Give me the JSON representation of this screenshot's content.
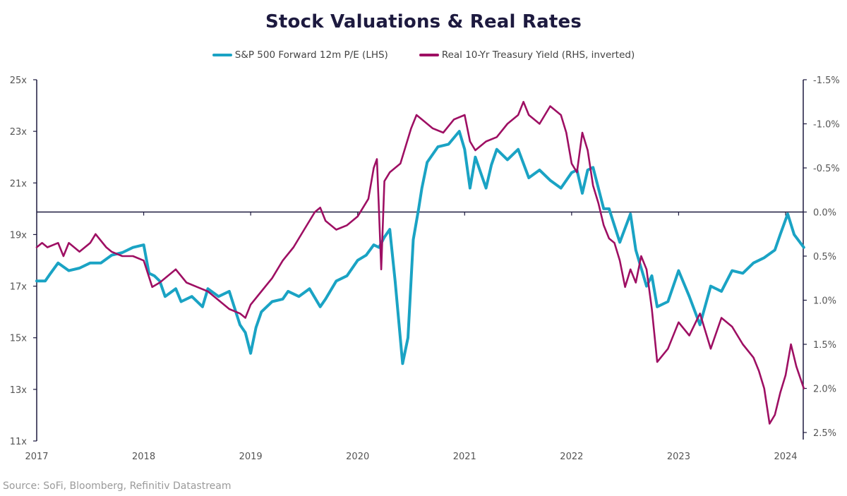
{
  "title": "Stock Valuations & Real Rates",
  "source": "Source: SoFi, Bloomberg, Refinitiv Datastream",
  "legend": [
    {
      "label": "S&P 500 Forward 12m P/E (LHS)",
      "color": "#1aa3c4"
    },
    {
      "label": "Real 10-Yr Treasury Yield (RHS, inverted)",
      "color": "#9e0f63"
    }
  ],
  "chart_data": {
    "type": "line",
    "title": "Stock Valuations & Real Rates",
    "xlabel": "",
    "ylabel_left": "",
    "ylabel_right": "",
    "x_ticks": [
      "2017",
      "2018",
      "2019",
      "2020",
      "2021",
      "2022",
      "2023",
      "2024"
    ],
    "xlim": [
      2017.0,
      2024.17
    ],
    "y_left": {
      "ticks": [
        "25x",
        "23x",
        "21x",
        "19x",
        "17x",
        "15x",
        "13x",
        "11x"
      ],
      "tick_values": [
        25,
        23,
        21,
        19,
        17,
        15,
        13,
        11
      ],
      "range": [
        11,
        25
      ]
    },
    "y_right": {
      "ticks": [
        "-1.5%",
        "-1.0%",
        "-0.5%",
        "0.0%",
        "0.5%",
        "1.0%",
        "1.5%",
        "2.0%",
        "2.5%"
      ],
      "tick_values": [
        -1.5,
        -1.0,
        -0.5,
        0.0,
        0.5,
        1.0,
        1.5,
        2.0,
        2.5
      ],
      "range": [
        -1.5,
        2.5
      ],
      "inverted": true
    },
    "reference_line": {
      "axis": "right",
      "value": 0.0
    },
    "grid": false,
    "legend_position": "top",
    "series": [
      {
        "name": "S&P 500 Forward 12m P/E (LHS)",
        "axis": "left",
        "color": "#1aa3c4",
        "x": [
          2017.0,
          2017.08,
          2017.13,
          2017.2,
          2017.3,
          2017.4,
          2017.5,
          2017.6,
          2017.7,
          2017.8,
          2017.9,
          2018.0,
          2018.05,
          2018.1,
          2018.15,
          2018.2,
          2018.3,
          2018.35,
          2018.45,
          2018.55,
          2018.6,
          2018.7,
          2018.8,
          2018.9,
          2018.95,
          2019.0,
          2019.05,
          2019.1,
          2019.2,
          2019.3,
          2019.35,
          2019.45,
          2019.55,
          2019.65,
          2019.7,
          2019.8,
          2019.9,
          2020.0,
          2020.08,
          2020.15,
          2020.2,
          2020.25,
          2020.3,
          2020.35,
          2020.42,
          2020.47,
          2020.52,
          2020.57,
          2020.6,
          2020.65,
          2020.75,
          2020.85,
          2020.95,
          2021.0,
          2021.05,
          2021.1,
          2021.2,
          2021.25,
          2021.3,
          2021.4,
          2021.5,
          2021.6,
          2021.7,
          2021.8,
          2021.9,
          2022.0,
          2022.05,
          2022.1,
          2022.15,
          2022.2,
          2022.3,
          2022.35,
          2022.45,
          2022.55,
          2022.6,
          2022.7,
          2022.75,
          2022.8,
          2022.9,
          2023.0,
          2023.1,
          2023.2,
          2023.3,
          2023.4,
          2023.5,
          2023.6,
          2023.7,
          2023.8,
          2023.9,
          2023.95,
          2024.02,
          2024.08,
          2024.17
        ],
        "values": [
          17.2,
          17.2,
          17.5,
          17.9,
          17.6,
          17.7,
          17.9,
          17.9,
          18.2,
          18.3,
          18.5,
          18.6,
          17.5,
          17.4,
          17.2,
          16.6,
          16.9,
          16.4,
          16.6,
          16.2,
          16.9,
          16.6,
          16.8,
          15.5,
          15.2,
          14.4,
          15.4,
          16.0,
          16.4,
          16.5,
          16.8,
          16.6,
          16.9,
          16.2,
          16.5,
          17.2,
          17.4,
          18.0,
          18.2,
          18.6,
          18.5,
          18.9,
          19.2,
          17.2,
          14.0,
          15.0,
          18.8,
          20.0,
          20.8,
          21.8,
          22.4,
          22.5,
          23.0,
          22.3,
          20.8,
          22.0,
          20.8,
          21.7,
          22.3,
          21.9,
          22.3,
          21.2,
          21.5,
          21.1,
          20.8,
          21.4,
          21.5,
          20.6,
          21.5,
          21.6,
          20.0,
          20.0,
          18.7,
          19.8,
          18.4,
          17.0,
          17.4,
          16.2,
          16.4,
          17.6,
          16.6,
          15.5,
          17.0,
          16.8,
          17.6,
          17.5,
          17.9,
          18.1,
          18.4,
          19.0,
          19.8,
          19.0,
          18.5
        ]
      },
      {
        "name": "Real 10-Yr Treasury Yield (RHS, inverted)",
        "axis": "right",
        "color": "#9e0f63",
        "x": [
          2017.0,
          2017.05,
          2017.1,
          2017.2,
          2017.25,
          2017.3,
          2017.4,
          2017.5,
          2017.55,
          2017.65,
          2017.7,
          2017.8,
          2017.9,
          2018.0,
          2018.08,
          2018.15,
          2018.2,
          2018.3,
          2018.4,
          2018.5,
          2018.6,
          2018.7,
          2018.8,
          2018.9,
          2018.95,
          2019.0,
          2019.1,
          2019.2,
          2019.3,
          2019.4,
          2019.5,
          2019.6,
          2019.65,
          2019.7,
          2019.8,
          2019.9,
          2020.0,
          2020.05,
          2020.1,
          2020.15,
          2020.18,
          2020.2,
          2020.22,
          2020.25,
          2020.3,
          2020.4,
          2020.5,
          2020.55,
          2020.6,
          2020.7,
          2020.8,
          2020.9,
          2021.0,
          2021.05,
          2021.1,
          2021.2,
          2021.3,
          2021.4,
          2021.5,
          2021.55,
          2021.6,
          2021.7,
          2021.8,
          2021.9,
          2021.95,
          2022.0,
          2022.05,
          2022.1,
          2022.15,
          2022.2,
          2022.25,
          2022.3,
          2022.35,
          2022.4,
          2022.45,
          2022.5,
          2022.55,
          2022.6,
          2022.65,
          2022.7,
          2022.75,
          2022.8,
          2022.9,
          2023.0,
          2023.1,
          2023.2,
          2023.3,
          2023.4,
          2023.5,
          2023.6,
          2023.7,
          2023.75,
          2023.8,
          2023.85,
          2023.9,
          2023.95,
          2024.0,
          2024.05,
          2024.1,
          2024.17
        ],
        "values": [
          0.4,
          0.35,
          0.4,
          0.35,
          0.5,
          0.35,
          0.45,
          0.35,
          0.25,
          0.4,
          0.45,
          0.5,
          0.5,
          0.55,
          0.85,
          0.8,
          0.75,
          0.65,
          0.8,
          0.85,
          0.9,
          1.0,
          1.1,
          1.15,
          1.2,
          1.05,
          0.9,
          0.75,
          0.55,
          0.4,
          0.2,
          0.0,
          -0.05,
          0.1,
          0.2,
          0.15,
          0.05,
          -0.05,
          -0.15,
          -0.5,
          -0.6,
          0.0,
          0.65,
          -0.35,
          -0.45,
          -0.55,
          -0.95,
          -1.1,
          -1.05,
          -0.95,
          -0.9,
          -1.05,
          -1.1,
          -0.8,
          -0.7,
          -0.8,
          -0.85,
          -1.0,
          -1.1,
          -1.25,
          -1.1,
          -1.0,
          -1.2,
          -1.1,
          -0.9,
          -0.55,
          -0.45,
          -0.9,
          -0.7,
          -0.3,
          -0.1,
          0.15,
          0.3,
          0.35,
          0.55,
          0.85,
          0.65,
          0.8,
          0.5,
          0.65,
          1.1,
          1.7,
          1.55,
          1.25,
          1.4,
          1.15,
          1.55,
          1.2,
          1.3,
          1.5,
          1.65,
          1.8,
          2.0,
          2.4,
          2.3,
          2.05,
          1.85,
          1.5,
          1.75,
          2.0
        ]
      }
    ]
  }
}
